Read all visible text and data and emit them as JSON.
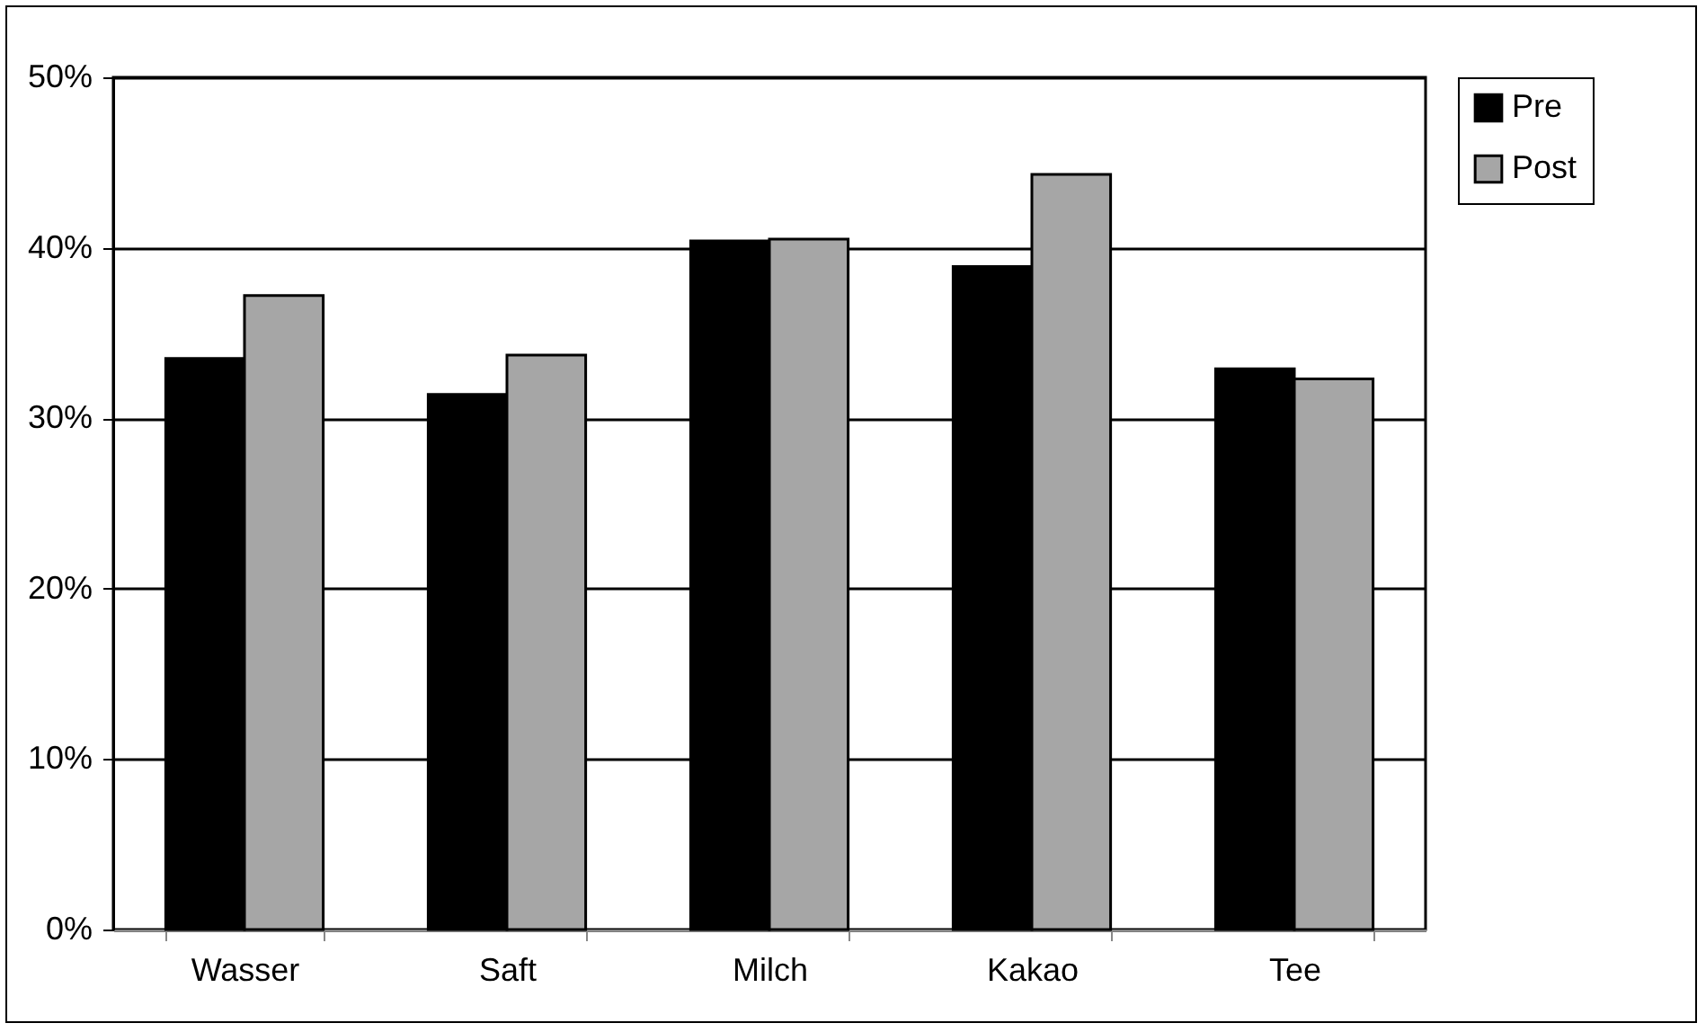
{
  "chart_data": {
    "type": "bar",
    "categories": [
      "Wasser",
      "Saft",
      "Milch",
      "Kakao",
      "Tee"
    ],
    "series": [
      {
        "name": "Pre",
        "color": "#000000",
        "values": [
          33.5,
          31.4,
          40.4,
          38.9,
          32.9
        ]
      },
      {
        "name": "Post",
        "color": "#a6a6a6",
        "values": [
          37.2,
          33.7,
          40.5,
          44.3,
          32.3
        ]
      }
    ],
    "ylim": [
      0,
      50
    ],
    "yticks": [
      {
        "value": 0,
        "label": "0%"
      },
      {
        "value": 10,
        "label": "10%"
      },
      {
        "value": 20,
        "label": "20%"
      },
      {
        "value": 30,
        "label": "30%"
      },
      {
        "value": 40,
        "label": "40%"
      },
      {
        "value": 50,
        "label": "50%"
      }
    ],
    "grid": "y",
    "legend": "right"
  }
}
